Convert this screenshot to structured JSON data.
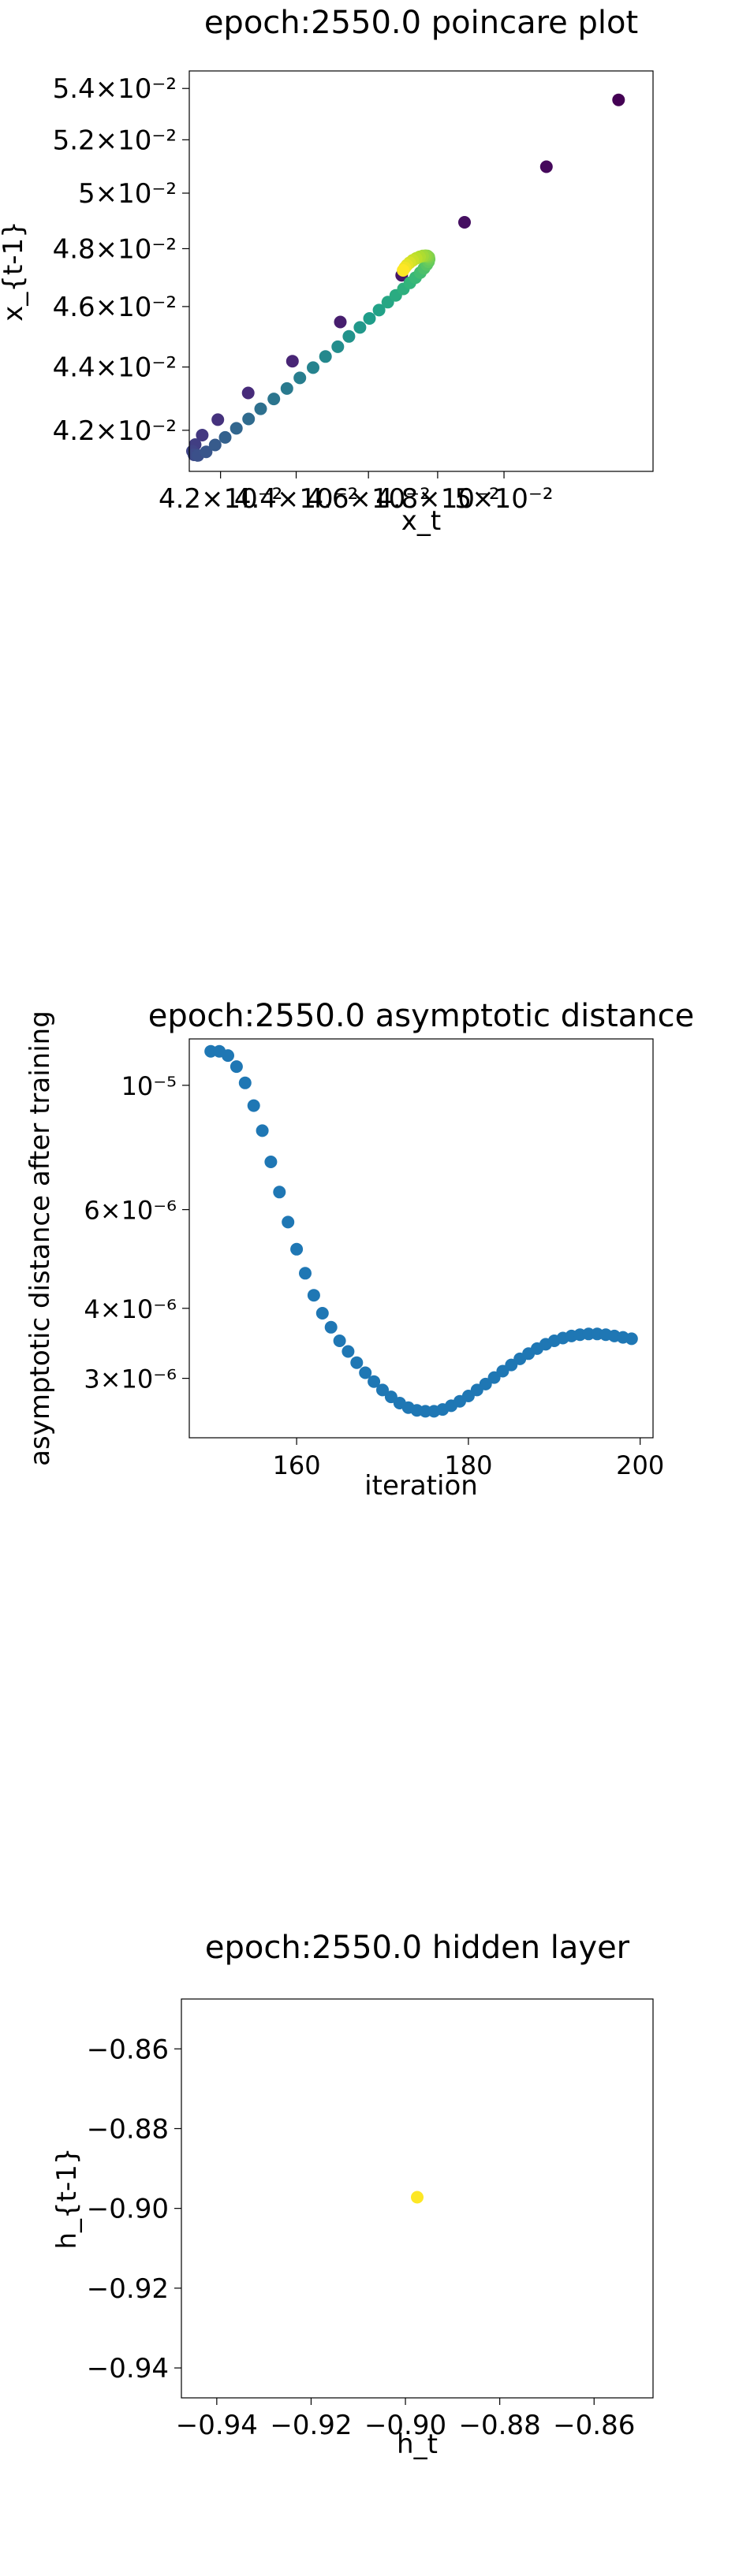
{
  "chart_data": [
    {
      "type": "scatter",
      "title": "epoch:2550.0 poincare plot",
      "xlabel": "x_t",
      "ylabel": "x_{t-1}",
      "xscale": "log",
      "yscale": "log",
      "xlim": [
        0.0412,
        0.0548
      ],
      "ylim": [
        0.04075,
        0.0547
      ],
      "xticks": [
        0.042,
        0.044,
        0.046,
        0.048,
        0.05
      ],
      "xtick_labels": [
        "4.2×10⁻²",
        "4.4×10⁻²",
        "4.6×10⁻²",
        "4.8×10⁻²",
        "5×10⁻²"
      ],
      "yticks": [
        0.042,
        0.044,
        0.046,
        0.048,
        0.05,
        0.052,
        0.054
      ],
      "ytick_labels": [
        "4.2×10⁻²",
        "4.4×10⁻²",
        "4.6×10⁻²",
        "4.8×10⁻²",
        "5×10⁻²",
        "5.2×10⁻²",
        "5.4×10⁻²"
      ],
      "colormap": "viridis",
      "points": [
        [
          0.05365,
          0.05355
        ],
        [
          0.05132,
          0.05098
        ],
        [
          0.0488,
          0.04894
        ],
        [
          0.04695,
          0.04707
        ],
        [
          0.04521,
          0.04548
        ],
        [
          0.0439,
          0.04419
        ],
        [
          0.04272,
          0.04317
        ],
        [
          0.04193,
          0.04233
        ],
        [
          0.04153,
          0.04185
        ],
        [
          0.04135,
          0.04156
        ],
        [
          0.04128,
          0.04136
        ],
        [
          0.04132,
          0.04125
        ],
        [
          0.04142,
          0.04123
        ],
        [
          0.04163,
          0.04134
        ],
        [
          0.04186,
          0.04155
        ],
        [
          0.04212,
          0.04178
        ],
        [
          0.04241,
          0.04206
        ],
        [
          0.04273,
          0.04235
        ],
        [
          0.04305,
          0.04267
        ],
        [
          0.0434,
          0.04298
        ],
        [
          0.04375,
          0.04331
        ],
        [
          0.0441,
          0.04365
        ],
        [
          0.04446,
          0.04398
        ],
        [
          0.0448,
          0.04434
        ],
        [
          0.04514,
          0.04466
        ],
        [
          0.04545,
          0.045
        ],
        [
          0.04576,
          0.0453
        ],
        [
          0.04603,
          0.0456
        ],
        [
          0.0463,
          0.04588
        ],
        [
          0.04655,
          0.04615
        ],
        [
          0.04678,
          0.04638
        ],
        [
          0.047,
          0.0466
        ],
        [
          0.04719,
          0.04681
        ],
        [
          0.04735,
          0.04699
        ],
        [
          0.04749,
          0.04716
        ],
        [
          0.0476,
          0.04731
        ],
        [
          0.04768,
          0.04744
        ],
        [
          0.04773,
          0.04754
        ],
        [
          0.04775,
          0.04763
        ],
        [
          0.04774,
          0.0477
        ],
        [
          0.0477,
          0.04774
        ],
        [
          0.04764,
          0.04775
        ],
        [
          0.04756,
          0.04774
        ],
        [
          0.04747,
          0.04771
        ],
        [
          0.04737,
          0.04766
        ],
        [
          0.04727,
          0.04759
        ],
        [
          0.04718,
          0.04751
        ],
        [
          0.0471,
          0.04742
        ],
        [
          0.04704,
          0.04733
        ],
        [
          0.04699,
          0.04724
        ]
      ]
    },
    {
      "type": "scatter",
      "title": "epoch:2550.0 asymptotic distance",
      "xlabel": "iteration",
      "ylabel": "asymptotic distance after training",
      "yscale": "log",
      "xlim": [
        147.5,
        201.5
      ],
      "ylim": [
        2.35e-06,
        1.21e-05
      ],
      "xticks": [
        160,
        180,
        200
      ],
      "xtick_labels": [
        "160",
        "180",
        "200"
      ],
      "yticks": [
        3e-06,
        4e-06,
        6e-06,
        1e-05
      ],
      "ytick_labels": [
        "3×10⁻⁶",
        "4×10⁻⁶",
        "6×10⁻⁶",
        "10⁻⁵"
      ],
      "color": "#1f77b4",
      "x": [
        150,
        151,
        152,
        153,
        154,
        155,
        156,
        157,
        158,
        159,
        160,
        161,
        162,
        163,
        164,
        165,
        166,
        167,
        168,
        169,
        170,
        171,
        172,
        173,
        174,
        175,
        176,
        177,
        178,
        179,
        180,
        181,
        182,
        183,
        184,
        185,
        186,
        187,
        188,
        189,
        190,
        191,
        192,
        193,
        194,
        195,
        196,
        197,
        198,
        199
      ],
      "y": [
        1.15e-05,
        1.15e-05,
        1.13e-05,
        1.08e-05,
        1.01e-05,
        9.2e-06,
        8.3e-06,
        7.3e-06,
        6.45e-06,
        5.7e-06,
        5.1e-06,
        4.62e-06,
        4.22e-06,
        3.92e-06,
        3.7e-06,
        3.5e-06,
        3.35e-06,
        3.2e-06,
        3.07e-06,
        2.96e-06,
        2.86e-06,
        2.78e-06,
        2.71e-06,
        2.66e-06,
        2.63e-06,
        2.62e-06,
        2.62e-06,
        2.64e-06,
        2.68e-06,
        2.73e-06,
        2.79e-06,
        2.86e-06,
        2.93e-06,
        3.01e-06,
        3.09e-06,
        3.17e-06,
        3.25e-06,
        3.32e-06,
        3.39e-06,
        3.45e-06,
        3.5e-06,
        3.54e-06,
        3.57e-06,
        3.59e-06,
        3.6e-06,
        3.6e-06,
        3.59e-06,
        3.57e-06,
        3.55e-06,
        3.53e-06
      ]
    },
    {
      "type": "scatter",
      "title": "epoch:2550.0 hidden layer",
      "xlabel": "h_t",
      "ylabel": "h_{t-1}",
      "xlim": [
        -0.9475,
        -0.8475
      ],
      "ylim": [
        -0.9475,
        -0.8475
      ],
      "xticks": [
        -0.94,
        -0.92,
        -0.9,
        -0.88,
        -0.86
      ],
      "xtick_labels": [
        "−0.94",
        "−0.92",
        "−0.90",
        "−0.88",
        "−0.86"
      ],
      "yticks": [
        -0.94,
        -0.92,
        -0.9,
        -0.88,
        -0.86
      ],
      "ytick_labels": [
        "−0.94",
        "−0.92",
        "−0.90",
        "−0.88",
        "−0.86"
      ],
      "color": "#fde725",
      "points": [
        [
          -0.8975,
          -0.8972
        ]
      ]
    }
  ]
}
